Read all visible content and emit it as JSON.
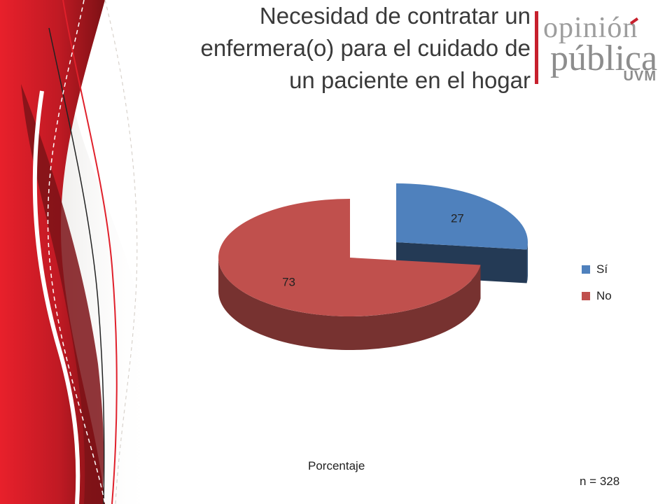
{
  "slide": {
    "title_lines": [
      "Necesidad de contratar un",
      "enfermera(o) para el cuidado de",
      "un paciente en el hogar"
    ],
    "measure_label": "Porcentaje",
    "sample_label": "n = 328"
  },
  "logo": {
    "line1": "opinión",
    "line2": "pública",
    "line3": "UVM",
    "accent_color": "#c7202d"
  },
  "chart_data": {
    "type": "pie",
    "style": "3d-exploded",
    "categories": [
      "Sí",
      "No"
    ],
    "values": [
      27,
      73
    ],
    "colors": [
      "#4f81bd",
      "#c0504d"
    ],
    "data_labels": [
      "27",
      "73"
    ],
    "legend_position": "right"
  },
  "theme": {
    "brand_red": "#d61f2c",
    "dark_red": "#8e1c1c"
  }
}
